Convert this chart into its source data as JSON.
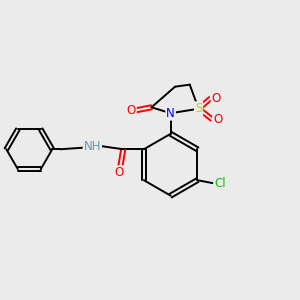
{
  "background_color": "#ebebeb",
  "bond_color": "#000000",
  "atom_colors": {
    "O": "#ff0000",
    "N": "#0000ff",
    "S": "#cccc00",
    "Cl": "#00cc00",
    "C": "#000000",
    "H": "#6699aa"
  },
  "figsize": [
    3.0,
    3.0
  ],
  "dpi": 100
}
